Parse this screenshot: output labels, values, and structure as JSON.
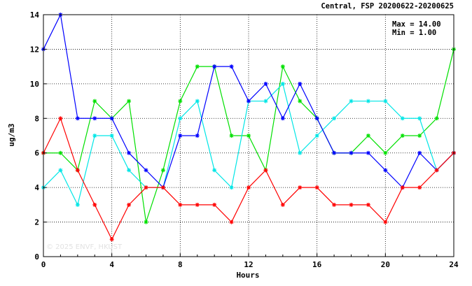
{
  "chart_data": {
    "type": "line",
    "title": "Central, FSP 20200622-20200625",
    "xlabel": "Hours",
    "ylabel": "ug/m3",
    "xlim": [
      0,
      24
    ],
    "ylim": [
      0,
      14
    ],
    "xticks": [
      0,
      4,
      8,
      12,
      16,
      20,
      24
    ],
    "yticks": [
      0,
      2,
      4,
      6,
      8,
      10,
      12,
      14
    ],
    "grid": true,
    "stats": {
      "max": "Max = 14.00",
      "min": "Min =  1.00"
    },
    "watermark": "© 2025 ENVF, HKUST",
    "x": [
      0,
      1,
      2,
      3,
      4,
      5,
      6,
      7,
      8,
      9,
      10,
      11,
      12,
      13,
      14,
      15,
      16,
      17,
      18,
      19,
      20,
      21,
      22,
      23,
      24
    ],
    "series": [
      {
        "color": "#00e000",
        "values": [
          6,
          6,
          5,
          9,
          8,
          9,
          2,
          5,
          9,
          11,
          11,
          7,
          7,
          5,
          11,
          9,
          8,
          6,
          6,
          7,
          6,
          7,
          7,
          8,
          12
        ]
      },
      {
        "color": "#00e6e6",
        "values": [
          4,
          5,
          3,
          7,
          7,
          5,
          4,
          4,
          8,
          9,
          5,
          4,
          9,
          9,
          10,
          6,
          7,
          8,
          9,
          9,
          9,
          8,
          8,
          5,
          6
        ]
      },
      {
        "color": "#0000ff",
        "values": [
          12,
          14,
          8,
          8,
          8,
          6,
          5,
          4,
          7,
          7,
          11,
          11,
          9,
          10,
          8,
          10,
          8,
          6,
          6,
          6,
          5,
          4,
          6,
          5,
          6
        ]
      },
      {
        "color": "#ff0000",
        "values": [
          6,
          8,
          5,
          3,
          1,
          3,
          4,
          4,
          3,
          3,
          3,
          2,
          4,
          5,
          3,
          4,
          4,
          3,
          3,
          3,
          2,
          4,
          4,
          5,
          6
        ]
      }
    ]
  }
}
